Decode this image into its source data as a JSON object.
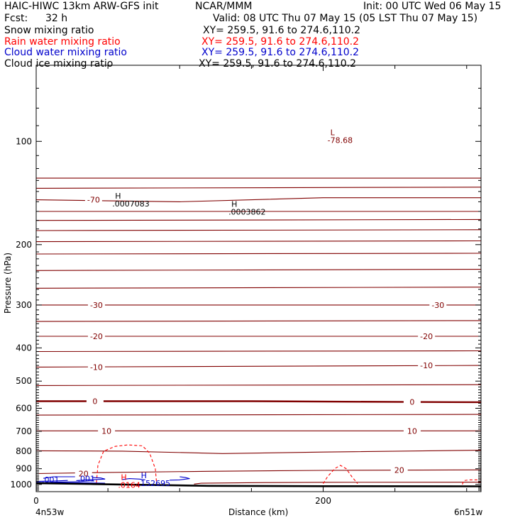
{
  "header": {
    "title": "HAIC-HIWC 13km ARW-GFS init",
    "org": "NCAR/MMM",
    "init": "Init: 00 UTC Wed 06 May 15",
    "fcst_label": "Fcst:",
    "fcst_value": "32 h",
    "valid": "Valid: 08 UTC Thu 07 May 15 (05 LST Thu 07 May 15)"
  },
  "fields": [
    {
      "name": "Snow mixing ratio",
      "xy": "XY= 259.5, 91.6 to 274.6,110.2",
      "color": "#000000"
    },
    {
      "name": "Rain water mixing ratio",
      "xy": "XY= 259.5, 91.6 to 274.6,110.2",
      "color": "#ff0000"
    },
    {
      "name": "Cloud water mixing ratio",
      "xy": "XY= 259.5, 91.6 to 274.6,110.2",
      "color": "#0000cc"
    },
    {
      "name": "Cloud ice mixing ratio",
      "xy": "XY= 259.5, 91.6 to 274.6,110.2",
      "color": "#000000"
    }
  ],
  "chart_data": {
    "type": "line",
    "xlabel": "Distance (km)",
    "ylabel": "Pressure (hPa)",
    "xlim": [
      0,
      310
    ],
    "ylim": [
      1050,
      60
    ],
    "y_scale": "log",
    "x_ticks": [
      "0",
      "200"
    ],
    "y_ticks": [
      "100",
      "200",
      "300",
      "400",
      "500",
      "600",
      "700",
      "800",
      "900",
      "1000"
    ],
    "x_endpoint_labels": [
      "4n53w",
      "6n51w"
    ],
    "colors": {
      "temperature": "#800000",
      "rain": "#ff0000",
      "cloud_water": "#0000cc",
      "terrain": "#000000"
    },
    "temperature_contour_labels": [
      {
        "text": "-70",
        "x": 40,
        "p": 148
      },
      {
        "text": "-30",
        "x": 42,
        "p": 300
      },
      {
        "text": "-30",
        "x": 280,
        "p": 300
      },
      {
        "text": "-20",
        "x": 42,
        "p": 370
      },
      {
        "text": "-20",
        "x": 272,
        "p": 370
      },
      {
        "text": "-10",
        "x": 42,
        "p": 455
      },
      {
        "text": "-10",
        "x": 272,
        "p": 450
      },
      {
        "text": "0",
        "x": 41,
        "p": 572
      },
      {
        "text": "0",
        "x": 262,
        "p": 575
      },
      {
        "text": "10",
        "x": 49,
        "p": 698
      },
      {
        "text": "10",
        "x": 262,
        "p": 698
      },
      {
        "text": "20",
        "x": 33,
        "p": 930
      },
      {
        "text": "20",
        "x": 253,
        "p": 907
      }
    ],
    "extrema": [
      {
        "text": "H",
        "value": ".0007083",
        "x": 55,
        "p": 147,
        "color": "#000000"
      },
      {
        "text": "H",
        "value": ".0003862",
        "x": 136,
        "p": 155,
        "color": "#000000"
      },
      {
        "text": "L",
        "value": "-78.68",
        "x": 205,
        "p": 96,
        "color": "#800000"
      },
      {
        "text": "H",
        "value": ".0164",
        "x": 59,
        "p": 970,
        "color": "#ff0000"
      },
      {
        "text": "H",
        "value": ".152695",
        "x": 73,
        "p": 960,
        "color": "#0000cc"
      }
    ],
    "cloud_water_labels": [
      {
        "text": ".001",
        "x": 10,
        "p": 968
      },
      {
        "text": ".001",
        "x": 35,
        "p": 962
      }
    ]
  }
}
